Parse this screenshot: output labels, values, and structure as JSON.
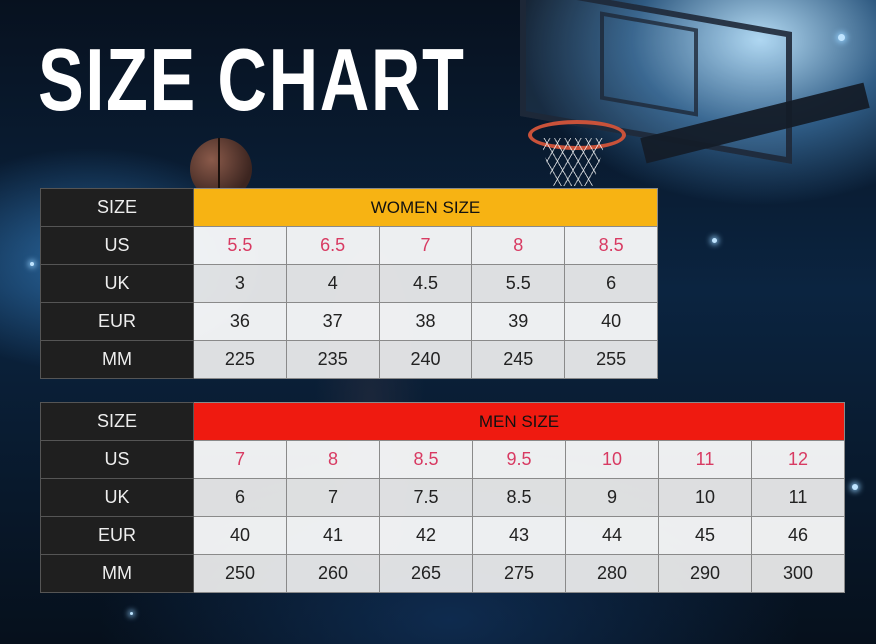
{
  "title": "SIZE CHART",
  "women": {
    "header_label": "SIZE",
    "title": "WOMEN SIZE",
    "title_color": "#f7b313",
    "rows": [
      {
        "label": "US",
        "values": [
          "5.5",
          "6.5",
          "7",
          "8",
          "8.5"
        ]
      },
      {
        "label": "UK",
        "values": [
          "3",
          "4",
          "4.5",
          "5.5",
          "6"
        ]
      },
      {
        "label": "EUR",
        "values": [
          "36",
          "37",
          "38",
          "39",
          "40"
        ]
      },
      {
        "label": "MM",
        "values": [
          "225",
          "235",
          "240",
          "245",
          "255"
        ]
      }
    ]
  },
  "men": {
    "header_label": "SIZE",
    "title": "MEN SIZE",
    "title_color": "#ef1a10",
    "rows": [
      {
        "label": "US",
        "values": [
          "7",
          "8",
          "8.5",
          "9.5",
          "10",
          "11",
          "12"
        ]
      },
      {
        "label": "UK",
        "values": [
          "6",
          "7",
          "7.5",
          "8.5",
          "9",
          "10",
          "11"
        ]
      },
      {
        "label": "EUR",
        "values": [
          "40",
          "41",
          "42",
          "43",
          "44",
          "45",
          "46"
        ]
      },
      {
        "label": "MM",
        "values": [
          "250",
          "260",
          "265",
          "275",
          "280",
          "290",
          "300"
        ]
      }
    ]
  },
  "colors": {
    "us_value": "#d83a62",
    "label_bg": "#1f1f1f"
  }
}
